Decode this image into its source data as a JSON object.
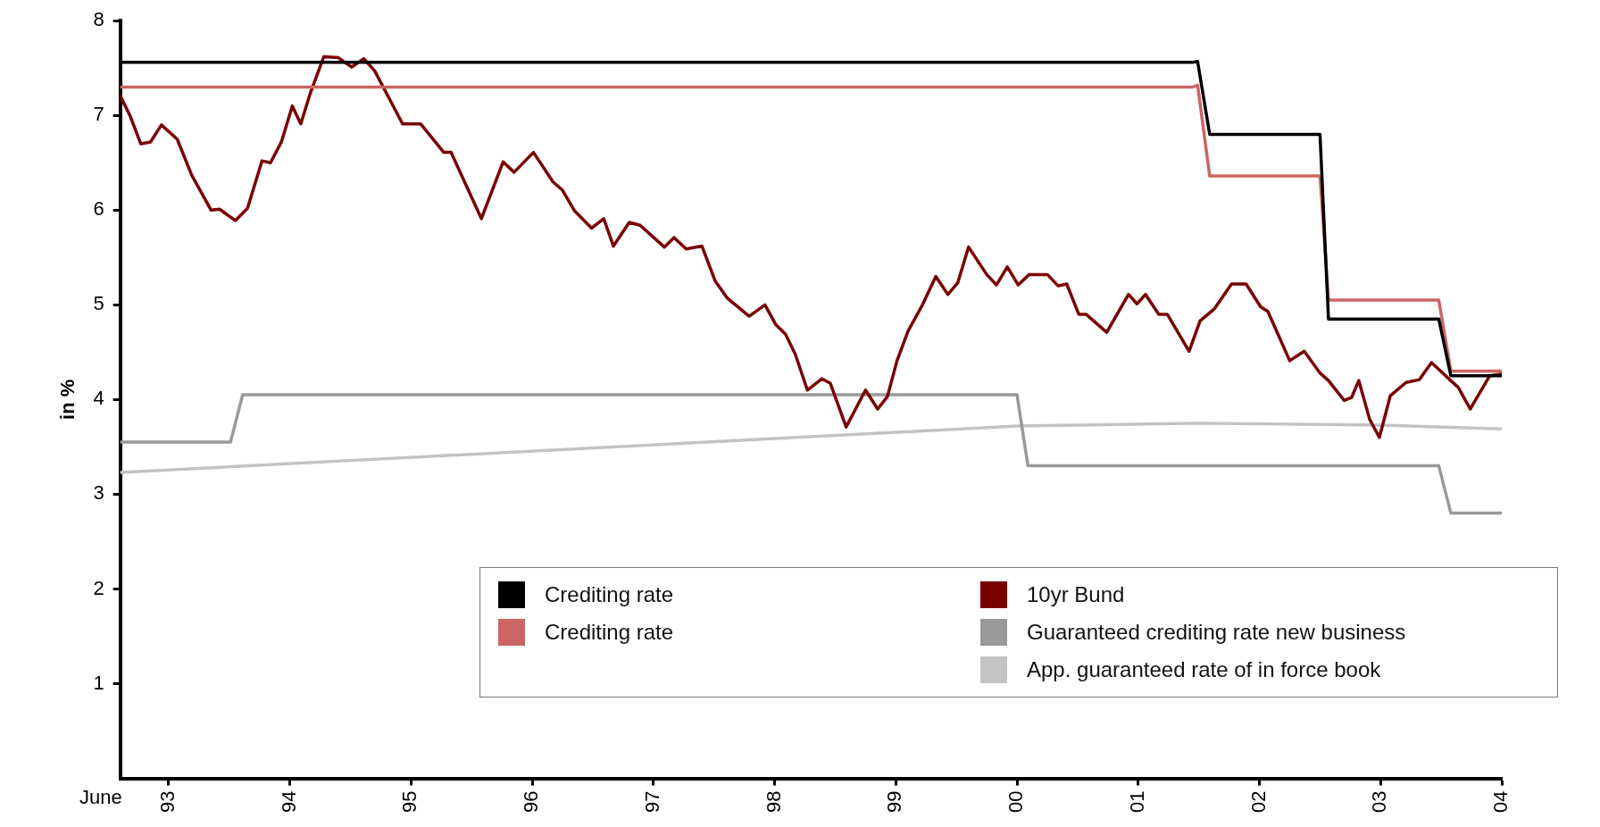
{
  "chart_data": {
    "type": "line",
    "xlabel": "June",
    "ylabel": "in %",
    "xlim": [
      1992.6,
      2004
    ],
    "ylim": [
      0,
      8
    ],
    "xticks": [
      {
        "value": 1993,
        "label": "93"
      },
      {
        "value": 1994,
        "label": "94"
      },
      {
        "value": 1995,
        "label": "95"
      },
      {
        "value": 1996,
        "label": "96"
      },
      {
        "value": 1997,
        "label": "97"
      },
      {
        "value": 1998,
        "label": "98"
      },
      {
        "value": 1999,
        "label": "99"
      },
      {
        "value": 2000,
        "label": "00"
      },
      {
        "value": 2001,
        "label": "01"
      },
      {
        "value": 2002,
        "label": "02"
      },
      {
        "value": 2003,
        "label": "03"
      },
      {
        "value": 2004,
        "label": "04"
      }
    ],
    "yticks": [
      1,
      2,
      3,
      4,
      5,
      6,
      7,
      8
    ],
    "grid": false,
    "legend": "bottom right",
    "marker": "none",
    "line_style": "solid",
    "series": [
      {
        "name": "Crediting rate",
        "color": "#000000",
        "x": [
          1992.6,
          2001.45,
          2001.49,
          2001.59,
          2002.5,
          2002.57,
          2003.48,
          2003.58,
          2004
        ],
        "values": [
          7.56,
          7.56,
          7.57,
          6.8,
          6.8,
          4.85,
          4.85,
          4.25,
          4.25
        ]
      },
      {
        "name": "Crediting rate",
        "color": "#cd6464",
        "x": [
          1992.6,
          2001.45,
          2001.49,
          2001.59,
          2002.5,
          2002.57,
          2003.48,
          2003.58,
          2004
        ],
        "values": [
          7.3,
          7.3,
          7.32,
          6.36,
          6.36,
          5.05,
          5.05,
          4.3,
          4.3
        ]
      },
      {
        "name": "10yr Bund",
        "color": "#7a0000",
        "x": [
          1992.6,
          1992.68,
          1992.77,
          1992.85,
          1992.94,
          1993.07,
          1993.19,
          1993.35,
          1993.42,
          1993.55,
          1993.65,
          1993.77,
          1993.84,
          1993.93,
          1994.02,
          1994.09,
          1994.17,
          1994.28,
          1994.4,
          1994.51,
          1994.61,
          1994.7,
          1994.93,
          1995.08,
          1995.27,
          1995.33,
          1995.58,
          1995.76,
          1995.85,
          1996.01,
          1996.17,
          1996.25,
          1996.35,
          1996.49,
          1996.59,
          1996.67,
          1996.8,
          1996.89,
          1997.09,
          1997.17,
          1997.27,
          1997.4,
          1997.51,
          1997.61,
          1997.79,
          1997.92,
          1998.01,
          1998.09,
          1998.17,
          1998.27,
          1998.39,
          1998.46,
          1998.59,
          1998.75,
          1998.85,
          1998.93,
          1999.01,
          1999.1,
          1999.22,
          1999.33,
          1999.43,
          1999.51,
          1999.6,
          1999.75,
          1999.83,
          1999.92,
          2000.01,
          2000.1,
          2000.25,
          2000.34,
          2000.41,
          2000.51,
          2000.57,
          2000.74,
          2000.92,
          2000.99,
          2001.06,
          2001.17,
          2001.24,
          2001.42,
          2001.51,
          2001.63,
          2001.77,
          2001.89,
          2002.01,
          2002.07,
          2002.25,
          2002.37,
          2002.5,
          2002.57,
          2002.7,
          2002.76,
          2002.82,
          2002.91,
          2002.99,
          2003.08,
          2003.21,
          2003.32,
          2003.42,
          2003.57,
          2003.64,
          2003.74,
          2003.9,
          2004
        ],
        "values": [
          7.21,
          7.0,
          6.7,
          6.72,
          6.9,
          6.75,
          6.37,
          6.0,
          6.01,
          5.89,
          6.02,
          6.52,
          6.5,
          6.72,
          7.1,
          6.91,
          7.24,
          7.62,
          7.61,
          7.51,
          7.6,
          7.47,
          6.91,
          6.91,
          6.61,
          6.61,
          5.91,
          6.51,
          6.4,
          6.61,
          6.3,
          6.21,
          5.99,
          5.81,
          5.91,
          5.62,
          5.87,
          5.84,
          5.61,
          5.71,
          5.59,
          5.62,
          5.25,
          5.07,
          4.88,
          5.0,
          4.79,
          4.69,
          4.48,
          4.1,
          4.22,
          4.17,
          3.71,
          4.1,
          3.9,
          4.03,
          4.41,
          4.72,
          5.0,
          5.3,
          5.11,
          5.23,
          5.61,
          5.32,
          5.21,
          5.4,
          5.21,
          5.32,
          5.32,
          5.2,
          5.22,
          4.9,
          4.9,
          4.71,
          5.11,
          5.01,
          5.11,
          4.9,
          4.9,
          4.51,
          4.83,
          4.96,
          5.22,
          5.22,
          4.98,
          4.93,
          4.41,
          4.51,
          4.28,
          4.2,
          3.99,
          4.02,
          4.2,
          3.79,
          3.6,
          4.04,
          4.18,
          4.21,
          4.39,
          4.21,
          4.13,
          3.9,
          4.25,
          4.27
        ]
      },
      {
        "name": "Guaranteed crediting rate new business",
        "color": "#999999",
        "x": [
          1992.6,
          1993.51,
          1993.61,
          2000.0,
          2000.09,
          2003.48,
          2003.58,
          2004
        ],
        "values": [
          3.55,
          3.55,
          4.05,
          4.05,
          3.3,
          3.3,
          2.8,
          2.8
        ]
      },
      {
        "name": "App. guaranteed rate of in force book",
        "color": "#c3c3c3",
        "x": [
          1992.6,
          2000.0,
          2001.5,
          2003.0,
          2004
        ],
        "values": [
          3.23,
          3.72,
          3.75,
          3.73,
          3.69
        ]
      }
    ]
  }
}
